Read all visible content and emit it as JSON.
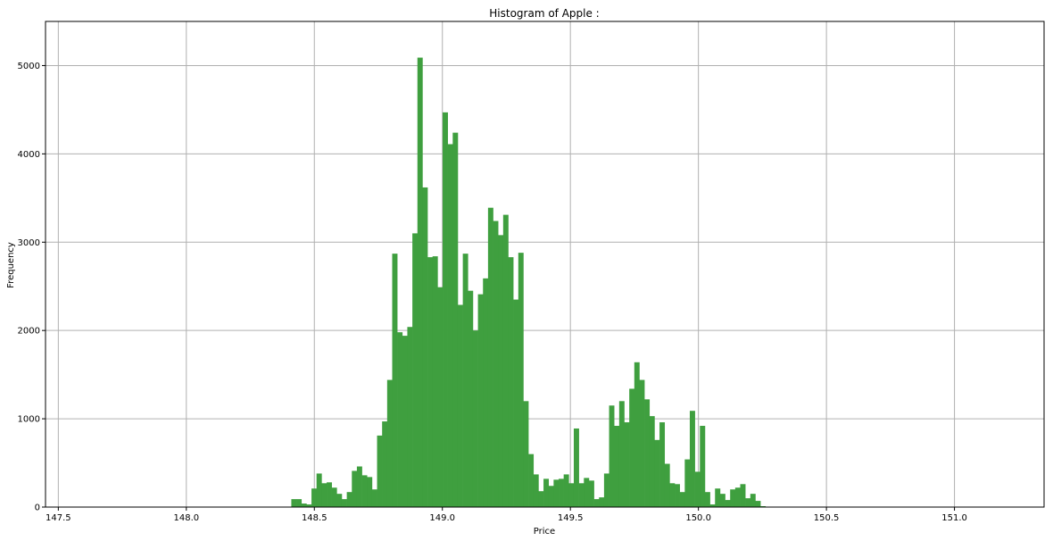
{
  "chart_data": {
    "type": "histogram",
    "title": "Histogram of Apple :",
    "xlabel": "Price",
    "ylabel": "Frequency",
    "xlim": [
      147.45,
      151.35
    ],
    "ylim": [
      0,
      5500
    ],
    "xticks": [
      147.5,
      148.0,
      148.5,
      149.0,
      149.5,
      150.0,
      150.5,
      151.0
    ],
    "xtick_labels": [
      "147.5",
      "148.0",
      "148.5",
      "149.0",
      "149.5",
      "150.0",
      "150.5",
      "151.0"
    ],
    "yticks": [
      0,
      1000,
      2000,
      3000,
      4000,
      5000
    ],
    "ytick_labels": [
      "0",
      "1000",
      "2000",
      "3000",
      "4000",
      "5000"
    ],
    "grid": true,
    "bar_color": "#3f9f3f",
    "bin_start": 148.41,
    "bin_width": 0.0197,
    "counts": [
      90,
      90,
      40,
      30,
      210,
      380,
      270,
      280,
      220,
      150,
      90,
      170,
      410,
      460,
      360,
      340,
      200,
      810,
      970,
      1440,
      2870,
      1980,
      1940,
      2040,
      3100,
      5090,
      3620,
      2830,
      2840,
      2490,
      4470,
      4110,
      4240,
      2290,
      2870,
      2450,
      2000,
      2410,
      2590,
      3390,
      3240,
      3080,
      3310,
      2830,
      2350,
      2880,
      1200,
      600,
      370,
      180,
      320,
      240,
      310,
      320,
      370,
      270,
      890,
      270,
      330,
      300,
      90,
      110,
      380,
      1150,
      920,
      1200,
      960,
      1340,
      1640,
      1440,
      1220,
      1030,
      760,
      960,
      490,
      270,
      260,
      170,
      540,
      1090,
      400,
      920,
      170,
      30,
      210,
      150,
      80,
      200,
      220,
      260,
      100,
      150,
      70,
      10
    ]
  }
}
